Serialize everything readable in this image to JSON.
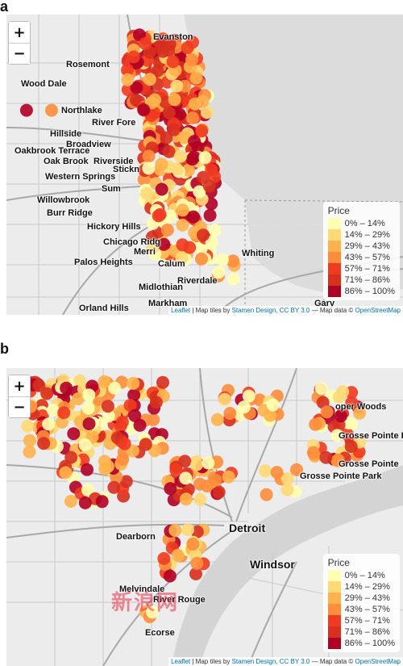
{
  "panel_a": {
    "letter": "a",
    "zoom_in": "+",
    "zoom_out": "−",
    "legend_title": "Price",
    "legend": [
      "0% – 14%",
      "14% – 29%",
      "29% – 43%",
      "43% – 57%",
      "57% – 71%",
      "71% – 86%",
      "86% – 100%"
    ],
    "places": [
      "Evanston",
      "Rosemont",
      "Wood Dale",
      "Northlake",
      "River Fore",
      "Hillside",
      "Broadview",
      "Oakbrook Terrace",
      "Oak Brook",
      "Riverside",
      "Western Springs",
      "Stickn",
      "Sum",
      "Willowbrook",
      "Burr Ridge",
      "Hickory Hills",
      "Chicago Ridg",
      "Merri",
      "Palos Heights",
      "Calum",
      "Riverdale",
      "Midlothian",
      "Whiting",
      "Gary",
      "Orland Hills",
      "Markham"
    ],
    "attribution": {
      "leaflet": "Leaflet",
      "mid": " | Map tiles by ",
      "stamen": "Stamen Design",
      "cc": ", CC BY 3.0",
      "data": " — Map data © ",
      "osm": "OpenStreetMap"
    }
  },
  "panel_b": {
    "letter": "b",
    "zoom_in": "+",
    "zoom_out": "−",
    "legend_title": "Price",
    "legend": [
      "0% – 14%",
      "14% – 29%",
      "29% – 43%",
      "43% – 57%",
      "57% – 71%",
      "71% – 86%",
      "86% – 100%"
    ],
    "places": [
      "Detroit",
      "Windsor",
      "Dearborn",
      "Melvindale",
      "River Rouge",
      "Ecorse",
      "Grosse Pointe Park",
      "Grosse Pointe",
      "Grosse Pointe F",
      "oper Woods"
    ],
    "attribution": {
      "leaflet": "Leaflet",
      "mid": " | Map tiles by ",
      "stamen": "Stamen Design",
      "cc": ", CC BY 3.0",
      "data": " — Map data © ",
      "osm": "OpenStreetMap"
    },
    "watermark": "新浪网"
  },
  "legend_colors": [
    "#ffffb2",
    "#fed976",
    "#feb24c",
    "#fd8d3c",
    "#f03b20",
    "#d7301f",
    "#b10026"
  ]
}
